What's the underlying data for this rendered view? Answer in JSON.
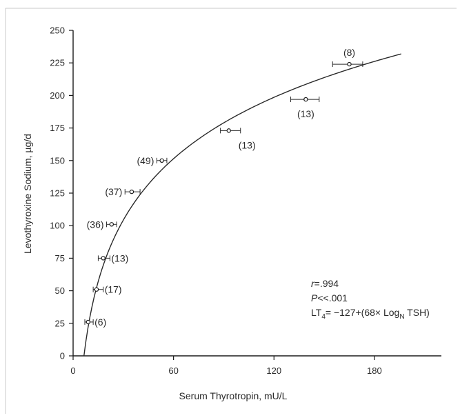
{
  "chart_data": {
    "type": "scatter",
    "xlabel": "Serum Thyrotropin, mU/L",
    "ylabel": "Levothyroxine Sodium, µg/d",
    "xlim": [
      0,
      220
    ],
    "ylim": [
      0,
      250
    ],
    "x_ticks": [
      "0",
      "60",
      "120",
      "180"
    ],
    "x_tick_values": [
      0,
      60,
      120,
      180
    ],
    "y_ticks": [
      "0",
      "25",
      "50",
      "75",
      "100",
      "125",
      "150",
      "175",
      "200",
      "225",
      "250"
    ],
    "y_tick_values": [
      0,
      25,
      50,
      75,
      100,
      125,
      150,
      175,
      200,
      225,
      250
    ],
    "grid": false,
    "points": [
      {
        "x": 9,
        "y": 26,
        "x_low": 7,
        "x_high": 12,
        "label": "(6)",
        "label_side": "right"
      },
      {
        "x": 14,
        "y": 51,
        "x_low": 12,
        "x_high": 18,
        "label": "(17)",
        "label_side": "right"
      },
      {
        "x": 18,
        "y": 75,
        "x_low": 15,
        "x_high": 22,
        "label": "(13)",
        "label_side": "right"
      },
      {
        "x": 23,
        "y": 101,
        "x_low": 20,
        "x_high": 26,
        "label": "(36)",
        "label_side": "left"
      },
      {
        "x": 35,
        "y": 126,
        "x_low": 31,
        "x_high": 40,
        "label": "(37)",
        "label_side": "left"
      },
      {
        "x": 53,
        "y": 150,
        "x_low": 50,
        "x_high": 56,
        "label": "(49)",
        "label_side": "left"
      },
      {
        "x": 93,
        "y": 173,
        "x_low": 88,
        "x_high": 100,
        "label": "(13)",
        "label_side": "below-right"
      },
      {
        "x": 139,
        "y": 197,
        "x_low": 130,
        "x_high": 147,
        "label": "(13)",
        "label_side": "below"
      },
      {
        "x": 165,
        "y": 224,
        "x_low": 155,
        "x_high": 173,
        "label": "(8)",
        "label_side": "above"
      }
    ],
    "fit": {
      "intercept": -127,
      "slope": 68,
      "x_start": 6.5,
      "x_end": 196
    },
    "annotations": {
      "r": "=.994",
      "p": "<<.001",
      "equation_prefix": "LT",
      "equation_sub": "4",
      "equation_mid": "= −127+(68× Log",
      "equation_log_sub": "N",
      "equation_suffix": " TSH)"
    }
  }
}
